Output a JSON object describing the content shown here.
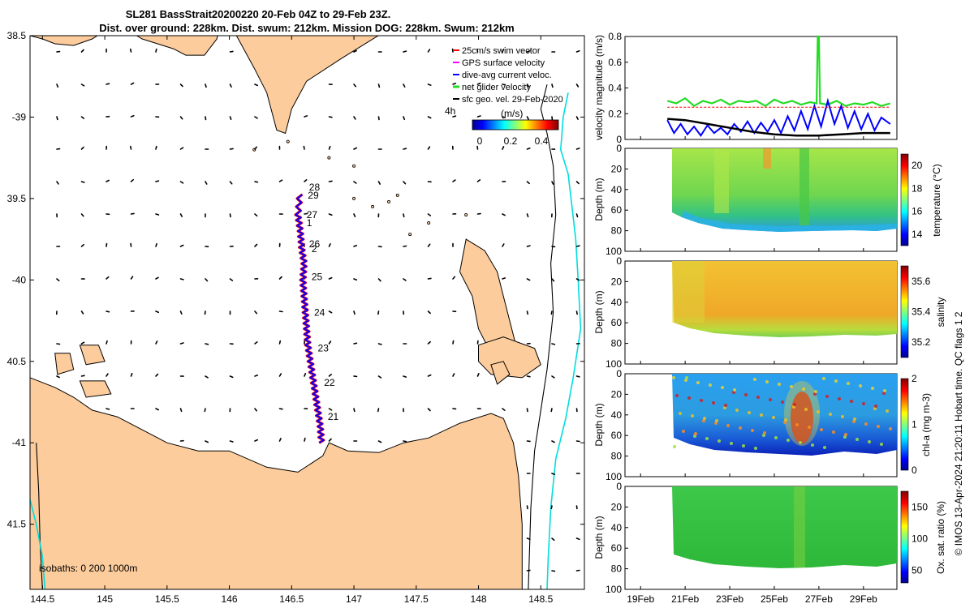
{
  "title_line1": "SL281 BassStrait20200220 20-Feb 04Z to 29-Feb 23Z.",
  "title_line2": "Dist. over ground: 228km. Dist. swum: 212km. Mission DOG: 228km. Swum: 212km",
  "credit": "© IMOS 13-Apr-2024 21:20:11 Hobart time. QC flags 1 2",
  "colors": {
    "land": "#fccc9c",
    "track": "#0000ff",
    "swim": "#ff0000",
    "net": "#22dd22",
    "gps": "#ff00ff",
    "sfc": "#000000",
    "isobath": "#00dddd"
  },
  "chart_data": [
    {
      "type": "scatter",
      "name": "map",
      "xlim": [
        144.4,
        148.85
      ],
      "ylim": [
        -41.9,
        -38.5
      ],
      "xticks": [
        144.5,
        145,
        145.5,
        146,
        146.5,
        147,
        147.5,
        148,
        148.5
      ],
      "xtick_labels": [
        "144.5",
        "145",
        "145.5",
        "146",
        "146.5",
        "147",
        "147.5",
        "148",
        "148.5"
      ],
      "yticks": [
        -38.5,
        -39,
        -39.5,
        -40,
        -40.5,
        -41,
        -41.5
      ],
      "ytick_labels": [
        "38.5",
        "-39",
        "39.5",
        "-40",
        "40.5",
        "-41",
        "41.5"
      ],
      "isobaths_label": "isobaths: 0   200  1000m",
      "legend": {
        "items": [
          "25cm/s swim vector",
          "GPS surface velocity",
          "dive-avg current veloc.",
          "net glider velocity",
          "sfc geo. vel. 29-Feb-2020"
        ],
        "scale_label": "4h",
        "colorbar_unit": "(m/s)",
        "colorbar_ticks": [
          "0",
          "0.2",
          "0.4"
        ]
      },
      "track": {
        "lon": [
          146.74,
          146.73,
          146.71,
          146.69,
          146.67,
          146.65,
          146.63,
          146.62,
          146.61,
          146.6,
          146.59,
          146.6,
          146.58,
          146.57,
          146.55,
          146.57
        ],
        "lat": [
          -41.0,
          -40.9,
          -40.8,
          -40.7,
          -40.6,
          -40.5,
          -40.4,
          -40.3,
          -40.2,
          -40.1,
          -40.0,
          -39.9,
          -39.8,
          -39.7,
          -39.6,
          -39.45
        ]
      },
      "day_labels": [
        {
          "text": "21",
          "lon": 146.79,
          "lat": -40.86
        },
        {
          "text": "22",
          "lon": 146.76,
          "lat": -40.65
        },
        {
          "text": "23",
          "lon": 146.71,
          "lat": -40.44
        },
        {
          "text": "24",
          "lon": 146.68,
          "lat": -40.22
        },
        {
          "text": "25",
          "lon": 146.66,
          "lat": -40.0
        },
        {
          "text": "26",
          "lon": 146.64,
          "lat": -39.8
        },
        {
          "text": "2",
          "lon": 146.66,
          "lat": -39.83
        },
        {
          "text": "1",
          "lon": 146.62,
          "lat": -39.67
        },
        {
          "text": "27",
          "lon": 146.62,
          "lat": -39.62
        },
        {
          "text": "29",
          "lon": 146.63,
          "lat": -39.5
        },
        {
          "text": "28",
          "lon": 146.64,
          "lat": -39.45
        }
      ]
    },
    {
      "type": "line",
      "name": "velocity",
      "ylabel": "velocity magnitude (m/s)",
      "ylim": [
        0,
        0.8
      ],
      "yticks": [
        0,
        0.2,
        0.4,
        0.6,
        0.8
      ],
      "ytick_labels": [
        "0",
        "0.2",
        "0.4",
        "0.6",
        "0.8"
      ],
      "xlim": [
        18.3,
        30.5
      ],
      "series": [
        {
          "name": "net glider velocity",
          "x": [
            20.2,
            20.6,
            21.0,
            21.4,
            21.8,
            22.2,
            22.6,
            23.0,
            23.4,
            23.8,
            24.2,
            24.6,
            25.0,
            25.4,
            25.8,
            26.2,
            26.6,
            26.9,
            26.95,
            27.0,
            27.05,
            27.4,
            27.8,
            28.2,
            28.6,
            29.0,
            29.4,
            29.8,
            30.2
          ],
          "values": [
            0.3,
            0.28,
            0.32,
            0.26,
            0.3,
            0.28,
            0.31,
            0.27,
            0.3,
            0.29,
            0.3,
            0.26,
            0.31,
            0.28,
            0.3,
            0.27,
            0.29,
            0.28,
            0.8,
            0.8,
            0.28,
            0.27,
            0.3,
            0.26,
            0.28,
            0.27,
            0.29,
            0.26,
            0.28
          ]
        },
        {
          "name": "dive-avg current veloc.",
          "x": [
            20.2,
            20.5,
            20.8,
            21.1,
            21.4,
            21.7,
            22.0,
            22.3,
            22.6,
            22.9,
            23.2,
            23.5,
            23.8,
            24.1,
            24.4,
            24.7,
            25.0,
            25.3,
            25.6,
            25.9,
            26.2,
            26.5,
            26.8,
            27.1,
            27.4,
            27.7,
            28.0,
            28.3,
            28.6,
            28.9,
            29.2,
            29.5,
            29.8,
            30.2
          ],
          "values": [
            0.15,
            0.05,
            0.12,
            0.04,
            0.1,
            0.03,
            0.11,
            0.05,
            0.09,
            0.04,
            0.12,
            0.06,
            0.14,
            0.05,
            0.13,
            0.06,
            0.15,
            0.05,
            0.18,
            0.07,
            0.22,
            0.08,
            0.26,
            0.1,
            0.3,
            0.12,
            0.26,
            0.09,
            0.22,
            0.08,
            0.2,
            0.07,
            0.17,
            0.12
          ]
        },
        {
          "name": "sfc geo. vel.",
          "x": [
            20.2,
            21.0,
            22.0,
            23.0,
            24.0,
            25.0,
            26.0,
            27.0,
            28.0,
            29.0,
            30.2
          ],
          "values": [
            0.16,
            0.15,
            0.12,
            0.09,
            0.06,
            0.04,
            0.03,
            0.03,
            0.04,
            0.05,
            0.05
          ]
        },
        {
          "name": "swim",
          "x": [
            20.2,
            30.2
          ],
          "values": [
            0.25,
            0.25
          ]
        }
      ]
    },
    {
      "type": "heatmap",
      "name": "temperature",
      "ylabel": "Depth (m)",
      "clabel": "temperature (°C)",
      "ylim": [
        0,
        100
      ],
      "yticks": [
        0,
        20,
        40,
        60,
        80,
        100
      ],
      "ytick_labels": [
        "0",
        "20",
        "40",
        "60",
        "80",
        "100"
      ],
      "clim": [
        13,
        21
      ],
      "cticks": [
        14,
        16,
        18,
        20
      ],
      "ctick_labels": [
        "14",
        "16",
        "18",
        "20"
      ]
    },
    {
      "type": "heatmap",
      "name": "salinity",
      "ylabel": "Depth (m)",
      "clabel": "salinity",
      "ylim": [
        0,
        100
      ],
      "yticks": [
        0,
        20,
        40,
        60,
        80,
        100
      ],
      "ytick_labels": [
        "0",
        "20",
        "40",
        "60",
        "80",
        "100"
      ],
      "clim": [
        35.1,
        35.7
      ],
      "cticks": [
        35.2,
        35.4,
        35.6
      ],
      "ctick_labels": [
        "35.2",
        "35.4",
        "35.6"
      ]
    },
    {
      "type": "heatmap",
      "name": "chl-a",
      "ylabel": "Depth (m)",
      "clabel": "chl-a (mg m-3)",
      "ylim": [
        0,
        100
      ],
      "yticks": [
        0,
        20,
        40,
        60,
        80,
        100
      ],
      "ytick_labels": [
        "0",
        "20",
        "40",
        "60",
        "80",
        "100"
      ],
      "clim": [
        0,
        2
      ],
      "cticks": [
        0,
        1,
        2
      ],
      "ctick_labels": [
        "0",
        "1",
        "2"
      ]
    },
    {
      "type": "heatmap",
      "name": "oxygen",
      "ylabel": "Depth (m)",
      "clabel": "Ox. sat. ratio (%)",
      "ylim": [
        0,
        100
      ],
      "yticks": [
        0,
        20,
        40,
        60,
        80,
        100
      ],
      "ytick_labels": [
        "0",
        "20",
        "40",
        "60",
        "80",
        "100"
      ],
      "clim": [
        30,
        175
      ],
      "cticks": [
        50,
        100,
        150
      ],
      "ctick_labels": [
        "50",
        "100",
        "150"
      ],
      "xticks": [
        19,
        21,
        23,
        25,
        27,
        29
      ],
      "xtick_labels": [
        "19Feb",
        "21Feb",
        "23Feb",
        "25Feb",
        "27Feb",
        "29Feb"
      ]
    }
  ]
}
